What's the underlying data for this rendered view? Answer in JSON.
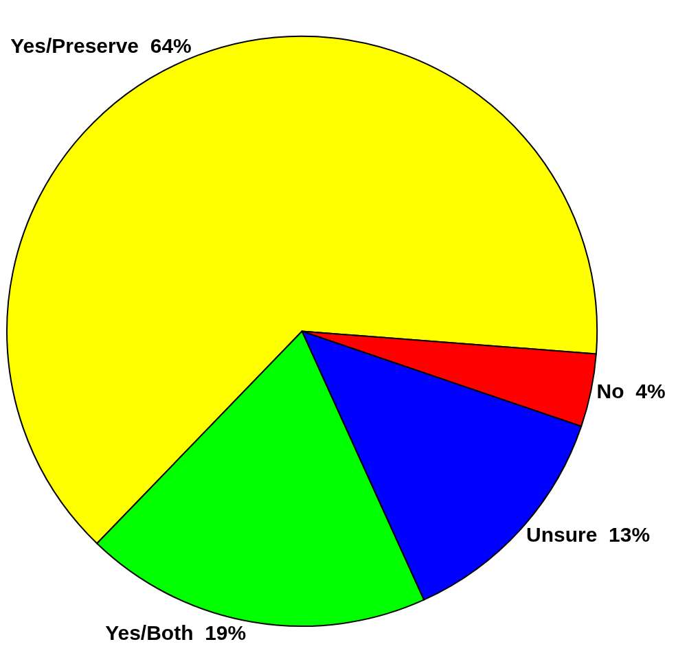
{
  "chart_data": {
    "type": "pie",
    "categories": [
      "Yes/Preserve",
      "No",
      "Unsure",
      "Yes/Both"
    ],
    "values": [
      64,
      4,
      13,
      19
    ],
    "value_labels": [
      "64%",
      "4%",
      "13%",
      "19%"
    ],
    "colors": [
      "#ffff00",
      "#ff0000",
      "#0000ff",
      "#00ff00"
    ],
    "legend": false
  }
}
